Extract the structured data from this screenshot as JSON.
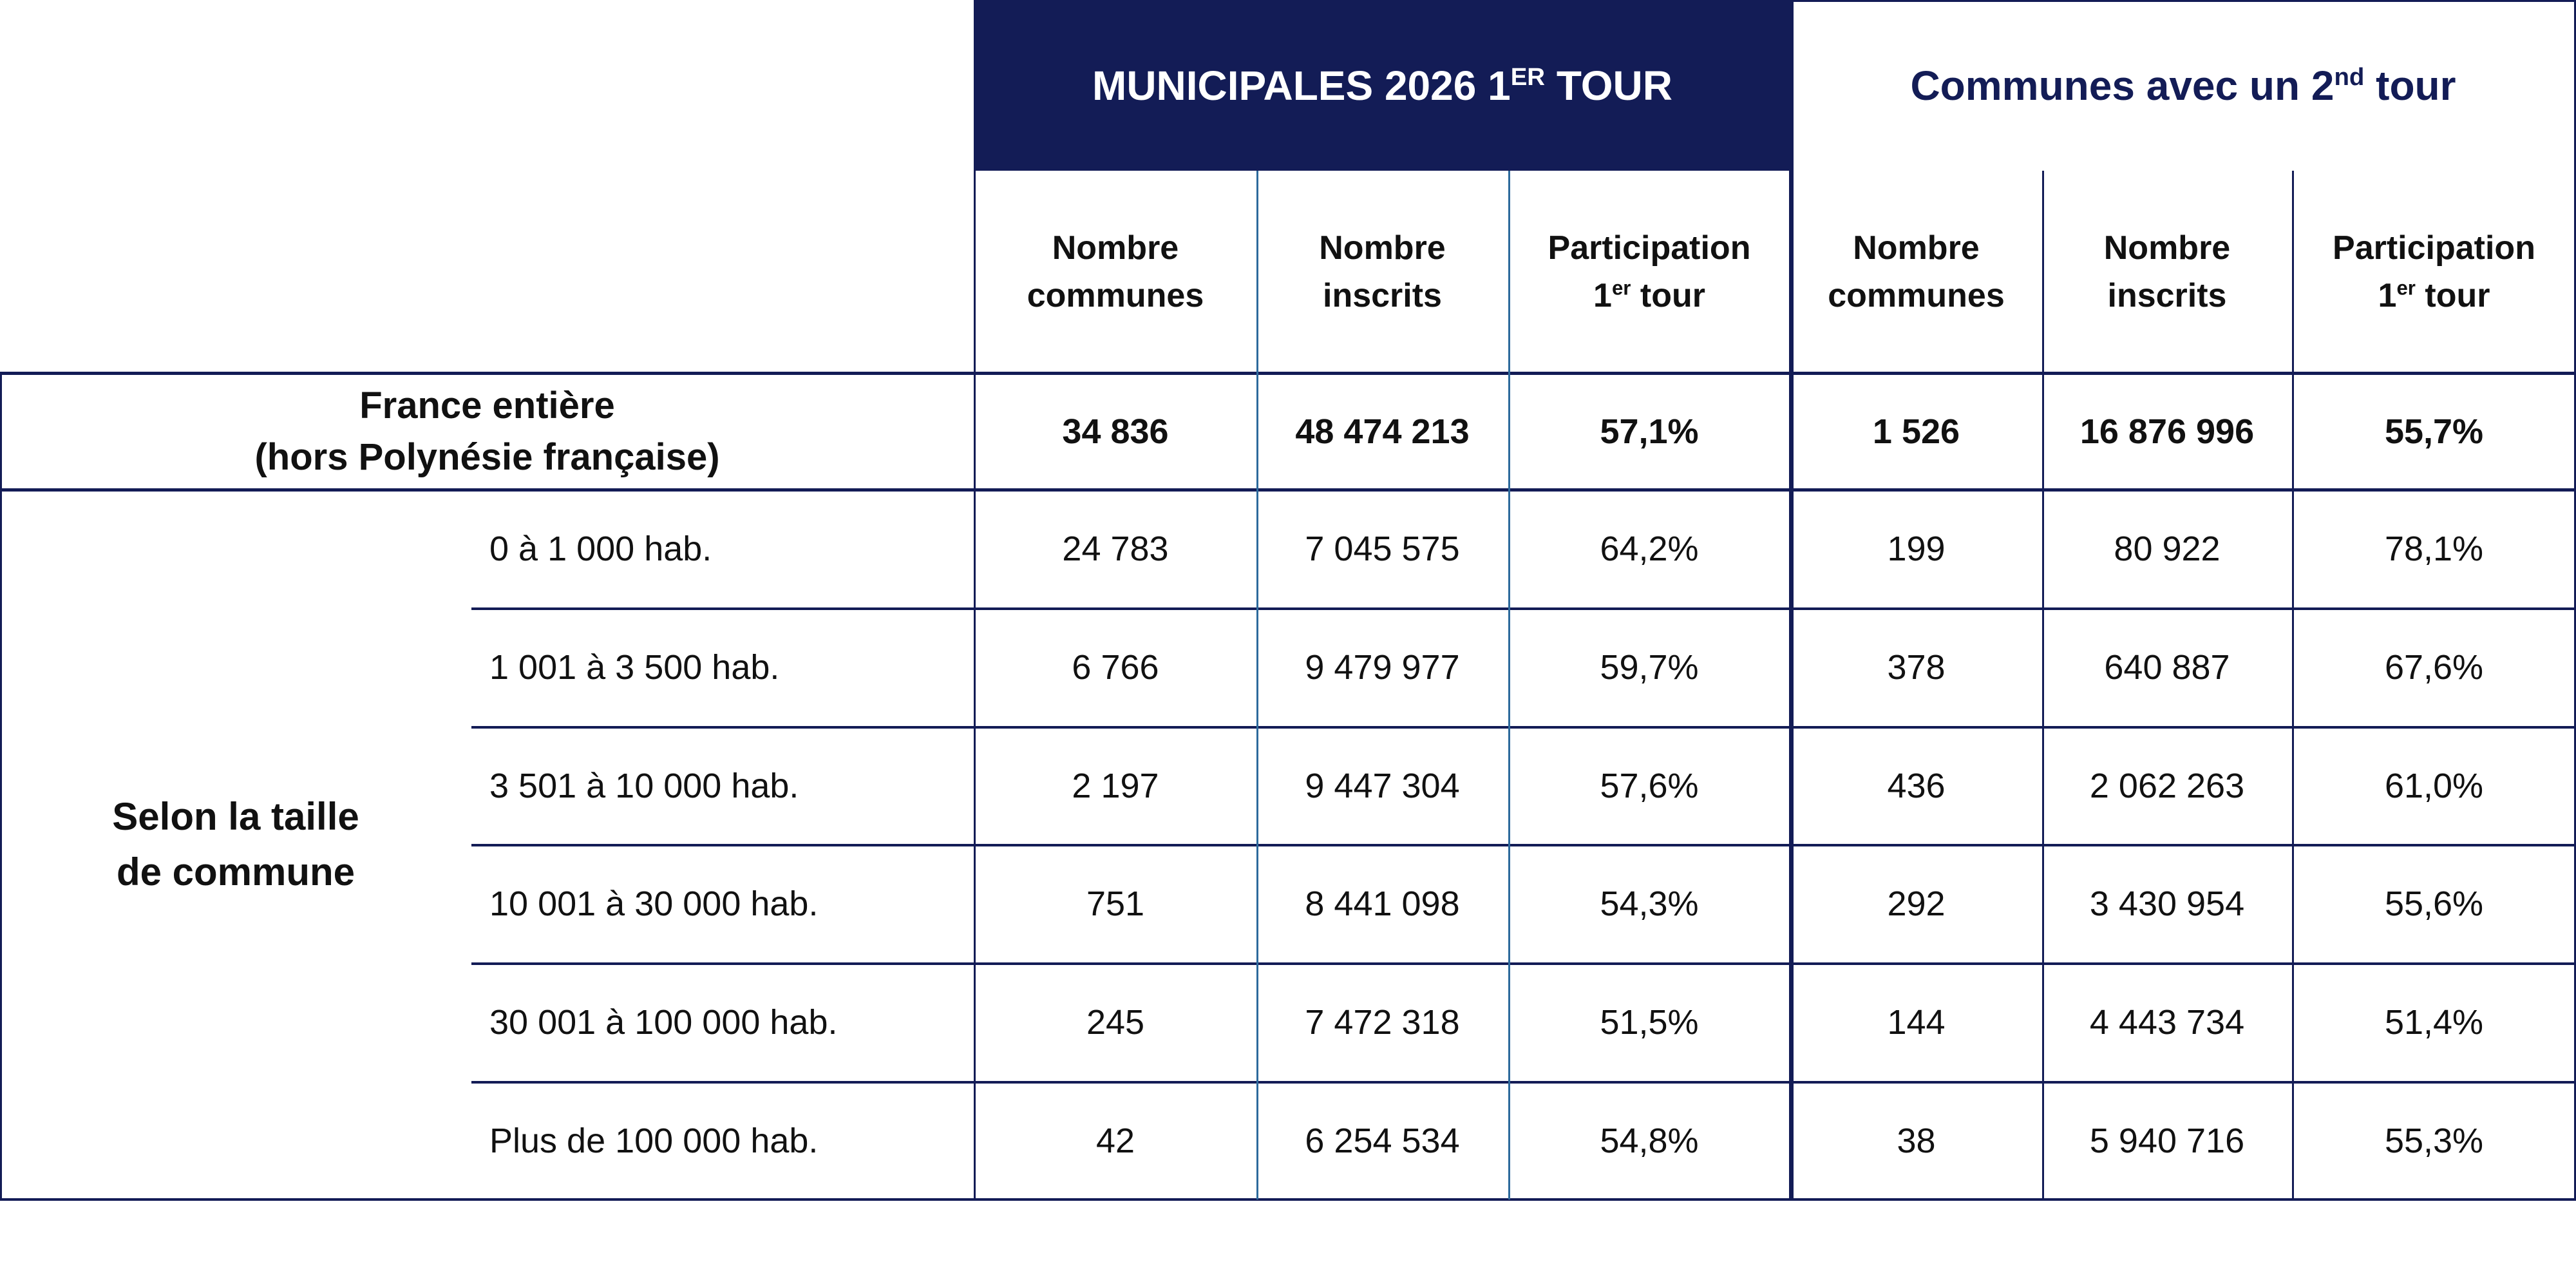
{
  "header": {
    "group1_title": "MUNICIPALES 2026 1",
    "group1_sup": "ER",
    "group1_suffix": " TOUR",
    "group2_title": "Communes avec un 2",
    "group2_sup": "nd",
    "group2_suffix": " tour",
    "columns": [
      {
        "line1": "Nombre",
        "line2": "communes"
      },
      {
        "line1": "Nombre",
        "line2": "inscrits"
      },
      {
        "line1": "Participation",
        "line2_pre": "1",
        "line2_sup": "er",
        "line2_post": " tour"
      },
      {
        "line1": "Nombre",
        "line2": "communes"
      },
      {
        "line1": "Nombre",
        "line2": "inscrits"
      },
      {
        "line1": "Participation",
        "line2_pre": "1",
        "line2_sup": "er",
        "line2_post": " tour"
      }
    ]
  },
  "total": {
    "label_line1": "France entière",
    "label_line2": "(hors Polynésie française)",
    "values": [
      "34 836",
      "48 474 213",
      "57,1%",
      "1 526",
      "16 876 996",
      "55,7%"
    ]
  },
  "group_label_line1": "Selon la taille",
  "group_label_line2": "de commune",
  "rows": [
    {
      "label": "0 à 1 000 hab.",
      "values": [
        "24 783",
        "7 045 575",
        "64,2%",
        "199",
        "80 922",
        "78,1%"
      ]
    },
    {
      "label": "1 001 à 3 500 hab.",
      "values": [
        "6 766",
        "9 479 977",
        "59,7%",
        "378",
        "640 887",
        "67,6%"
      ]
    },
    {
      "label": "3 501 à 10 000 hab.",
      "values": [
        "2 197",
        "9 447 304",
        "57,6%",
        "436",
        "2 062 263",
        "61,0%"
      ]
    },
    {
      "label": "10 001 à 30 000 hab.",
      "values": [
        "751",
        "8 441 098",
        "54,3%",
        "292",
        "3 430 954",
        "55,6%"
      ]
    },
    {
      "label": "30 001 à 100 000 hab.",
      "values": [
        "245",
        "7 472 318",
        "51,5%",
        "144",
        "4 443 734",
        "51,4%"
      ]
    },
    {
      "label": "Plus de 100 000 hab.",
      "values": [
        "42",
        "6 254 534",
        "54,8%",
        "38",
        "5 940 716",
        "55,3%"
      ]
    }
  ],
  "colors": {
    "navy": "#131c56",
    "inner_line": "#2d6a9c"
  }
}
